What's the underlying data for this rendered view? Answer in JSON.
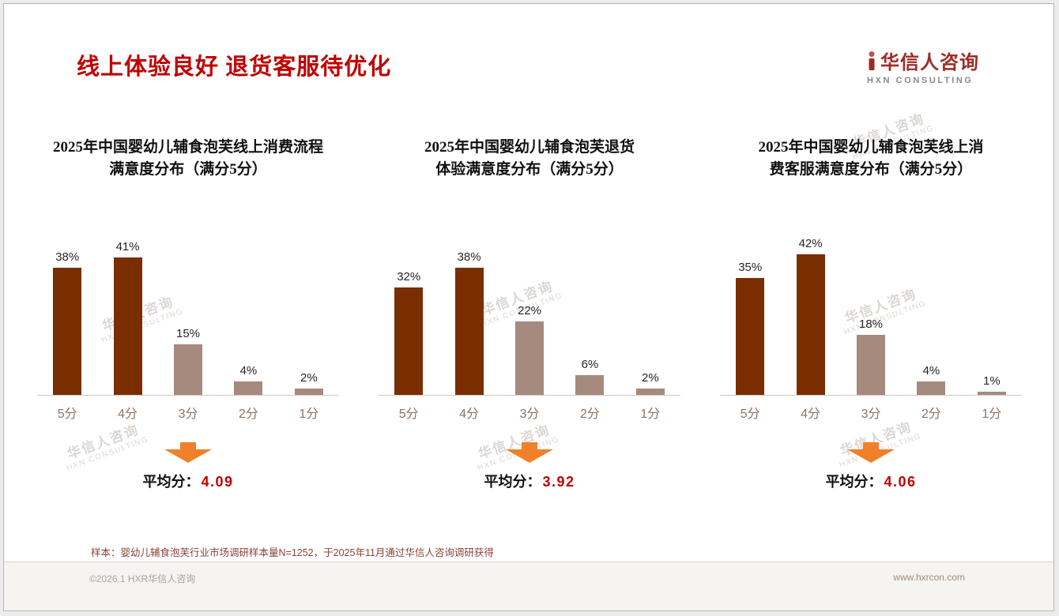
{
  "header": {
    "title": "线上体验良好 退货客服待优化",
    "logo_name": "华信人咨询",
    "logo_sub": "HXN CONSULTING"
  },
  "watermark": {
    "line1": "华信人咨询",
    "line2": "HXN CONSULTING"
  },
  "colors": {
    "title_red": "#c00000",
    "logo_red": "#9e2b25",
    "bar_dark": "#7a2e00",
    "bar_light": "#a68a7d",
    "cat_label": "#8c7365",
    "arrow_orange": "#f0802a",
    "avg_red": "#c00000",
    "footnote_brown": "#8a4236"
  },
  "chart_data": [
    {
      "type": "bar",
      "title_line1": "2025年中国婴幼儿辅食泡芙线上消费流程",
      "title_line2": "满意度分布（满分5分）",
      "categories": [
        "5分",
        "4分",
        "3分",
        "2分",
        "1分"
      ],
      "values": [
        38,
        41,
        15,
        4,
        2
      ],
      "unit": "%",
      "ylim": [
        0,
        50
      ],
      "avg_label": "平均分：",
      "avg_value": "4.09"
    },
    {
      "type": "bar",
      "title_line1": "2025年中国婴幼儿辅食泡芙退货",
      "title_line2": "体验满意度分布（满分5分）",
      "categories": [
        "5分",
        "4分",
        "3分",
        "2分",
        "1分"
      ],
      "values": [
        32,
        38,
        22,
        6,
        2
      ],
      "unit": "%",
      "ylim": [
        0,
        50
      ],
      "avg_label": "平均分：",
      "avg_value": "3.92"
    },
    {
      "type": "bar",
      "title_line1": "2025年中国婴幼儿辅食泡芙线上消",
      "title_line2": "费客服满意度分布（满分5分）",
      "categories": [
        "5分",
        "4分",
        "3分",
        "2分",
        "1分"
      ],
      "values": [
        35,
        42,
        18,
        4,
        1
      ],
      "unit": "%",
      "ylim": [
        0,
        50
      ],
      "avg_label": "平均分：",
      "avg_value": "4.06"
    }
  ],
  "footnote": "样本：婴幼儿辅食泡芙行业市场调研样本量N=1252，于2025年11月通过华信人咨询调研获得",
  "footer": {
    "left": "©2026.1 HXR华信人咨询",
    "right": "www.hxrcon.com"
  }
}
